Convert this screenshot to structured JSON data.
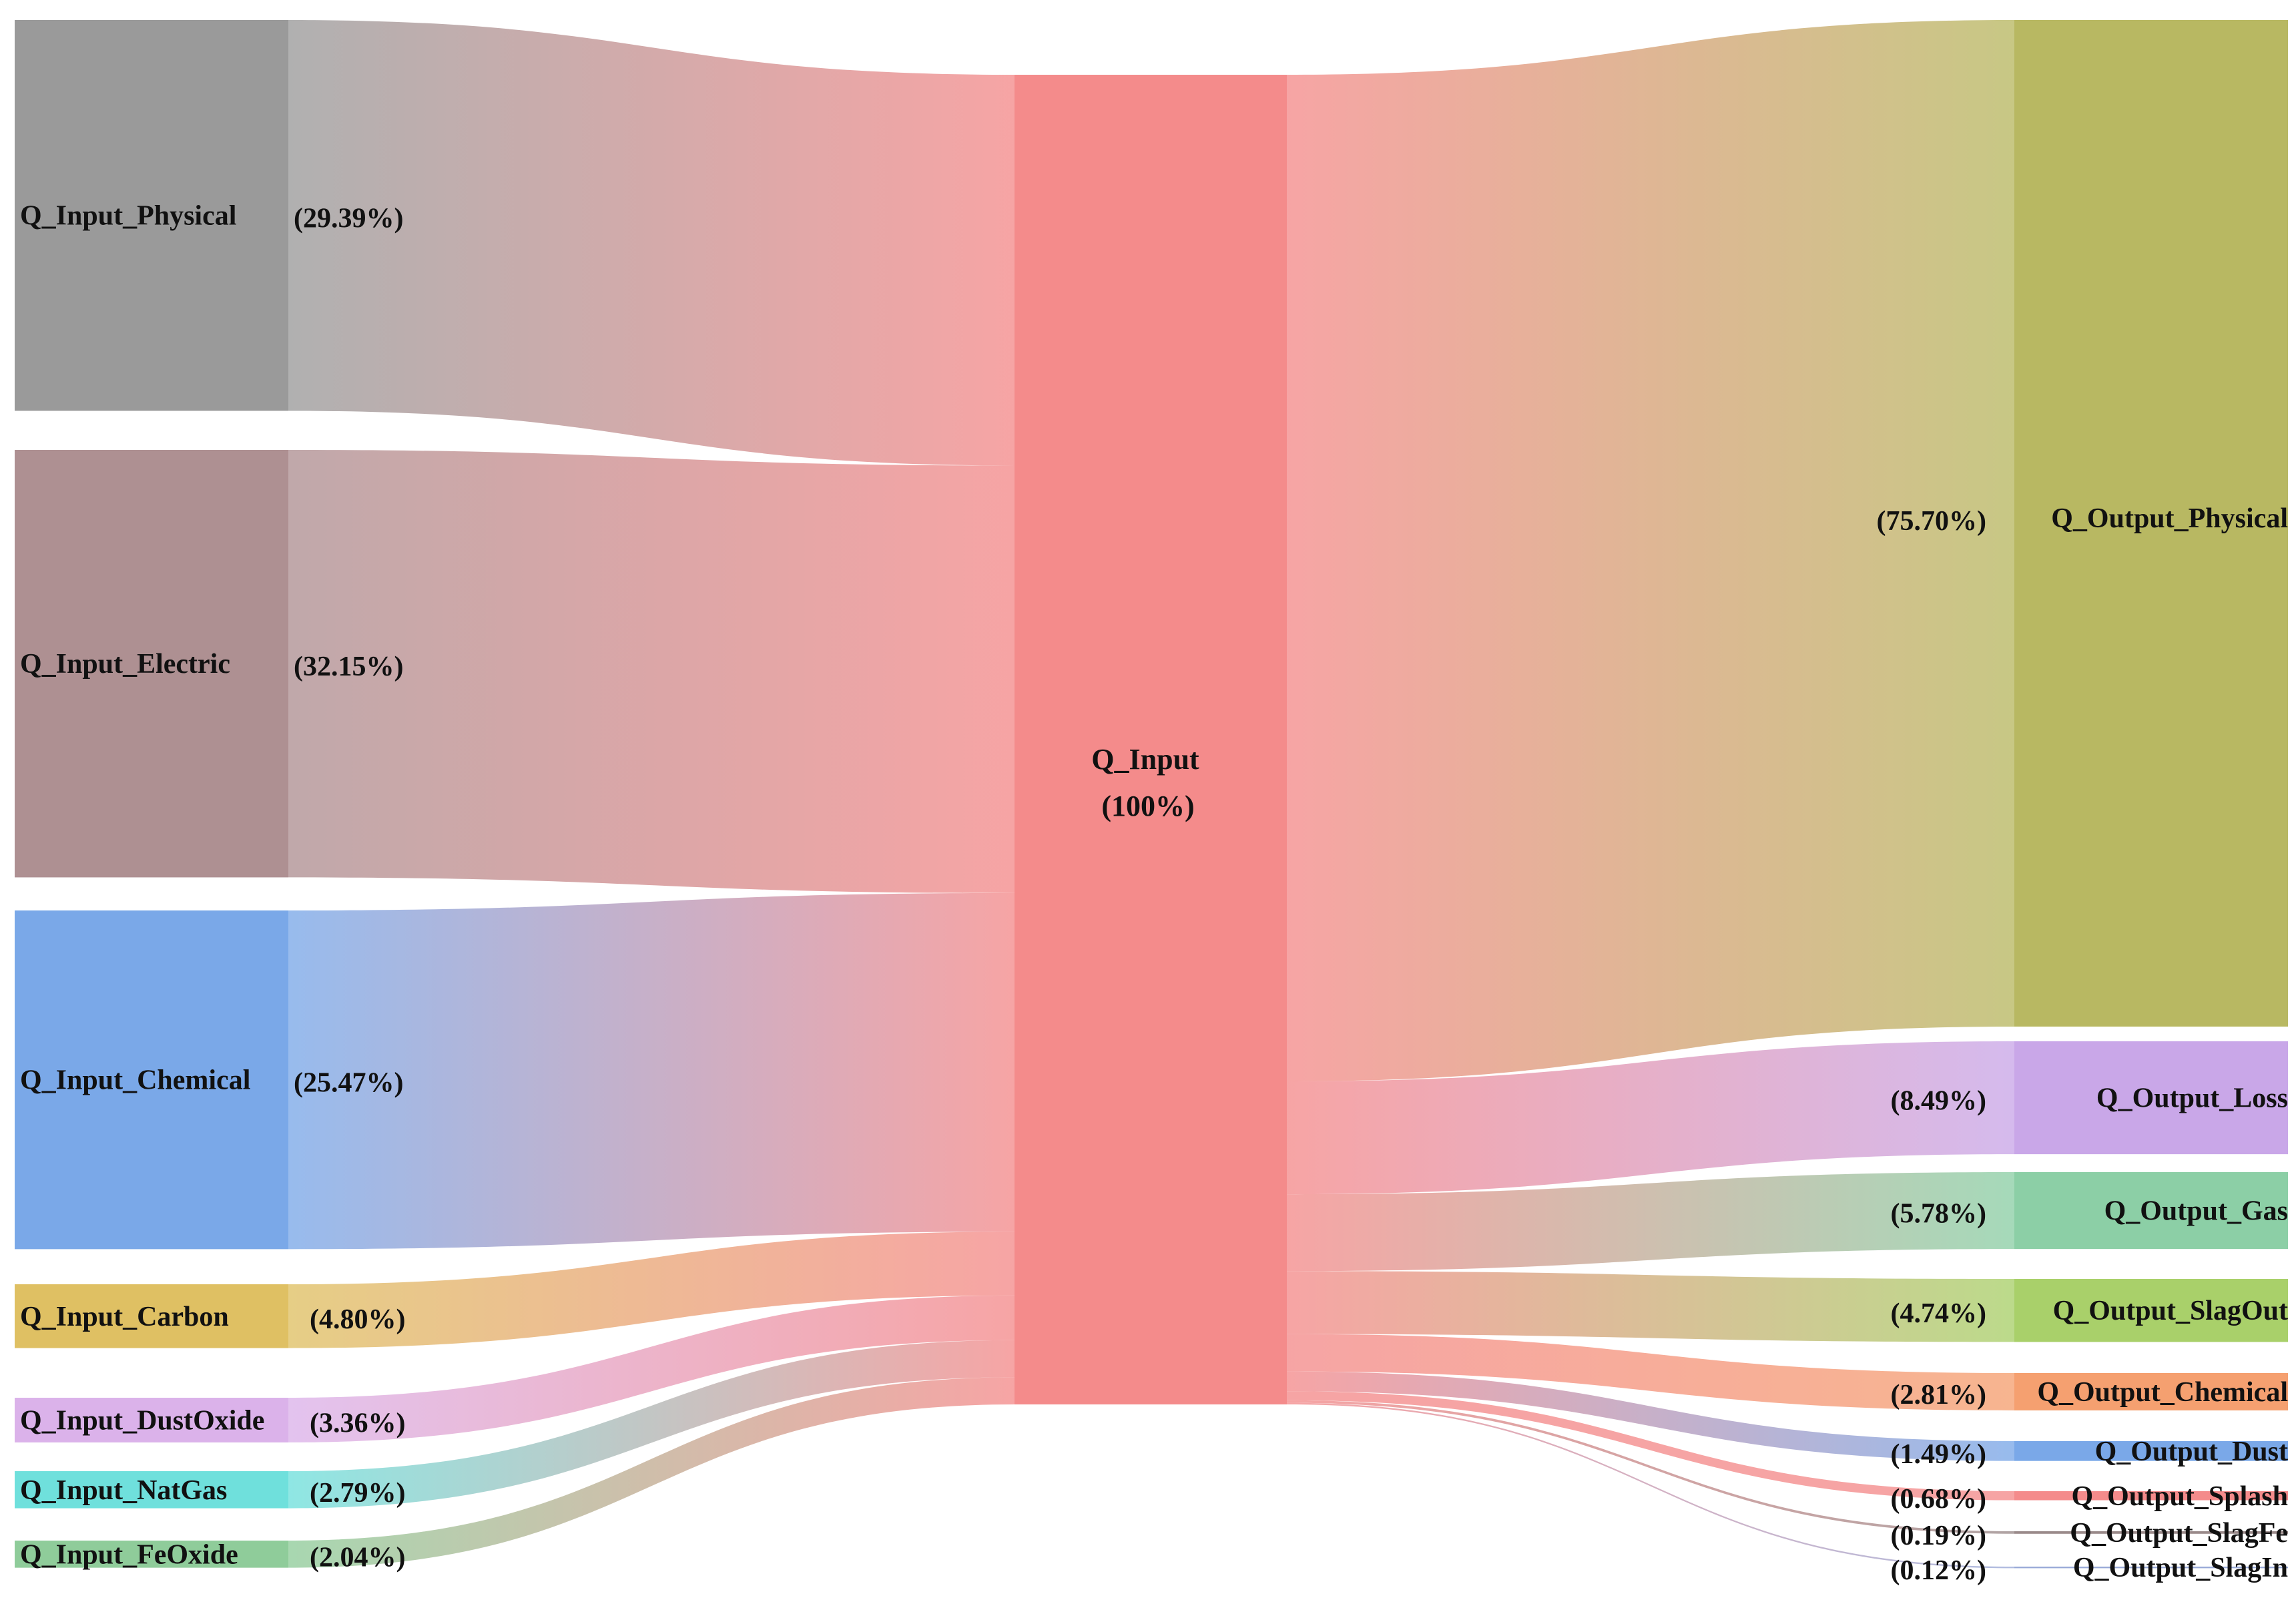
{
  "chart_data": {
    "type": "sankey",
    "title": "",
    "center": {
      "name": "Q_Input",
      "pct_label": "(100%)",
      "value": 100,
      "color": "#f48b8b"
    },
    "inputs": [
      {
        "name": "Q_Input_Physical",
        "value": 29.39,
        "pct_label": "(29.39%)",
        "color": "#9a9a9a"
      },
      {
        "name": "Q_Input_Electric",
        "value": 32.15,
        "pct_label": "(32.15%)",
        "color": "#ae9092"
      },
      {
        "name": "Q_Input_Chemical",
        "value": 25.47,
        "pct_label": "(25.47%)",
        "color": "#7aa8e8"
      },
      {
        "name": "Q_Input_Carbon",
        "value": 4.8,
        "pct_label": "(4.80%)",
        "color": "#dfc063"
      },
      {
        "name": "Q_Input_DustOxide",
        "value": 3.36,
        "pct_label": "(3.36%)",
        "color": "#dbb2ea"
      },
      {
        "name": "Q_Input_NatGas",
        "value": 2.79,
        "pct_label": "(2.79%)",
        "color": "#6fe0dc"
      },
      {
        "name": "Q_Input_FeOxide",
        "value": 2.04,
        "pct_label": "(2.04%)",
        "color": "#8fcc9a"
      }
    ],
    "outputs": [
      {
        "name": "Q_Output_Physical",
        "value": 75.7,
        "pct_label": "(75.70%)",
        "color": "#b8b862"
      },
      {
        "name": "Q_Output_Loss",
        "value": 8.49,
        "pct_label": "(8.49%)",
        "color": "#c9a7e8"
      },
      {
        "name": "Q_Output_Gas",
        "value": 5.78,
        "pct_label": "(5.78%)",
        "color": "#8ccfa6"
      },
      {
        "name": "Q_Output_SlagOut",
        "value": 4.74,
        "pct_label": "(4.74%)",
        "color": "#a9d06a"
      },
      {
        "name": "Q_Output_Chemical",
        "value": 2.81,
        "pct_label": "(2.81%)",
        "color": "#f5a070"
      },
      {
        "name": "Q_Output_Dust",
        "value": 1.49,
        "pct_label": "(1.49%)",
        "color": "#7aa8e8"
      },
      {
        "name": "Q_Output_Splash",
        "value": 0.68,
        "pct_label": "(0.68%)",
        "color": "#f48b8b"
      },
      {
        "name": "Q_Output_SlagFe",
        "value": 0.19,
        "pct_label": "(0.19%)",
        "color": "#9a8a8a"
      },
      {
        "name": "Q_Output_SlagIn",
        "value": 0.12,
        "pct_label": "(0.12%)",
        "color": "#9aaad8"
      }
    ]
  }
}
